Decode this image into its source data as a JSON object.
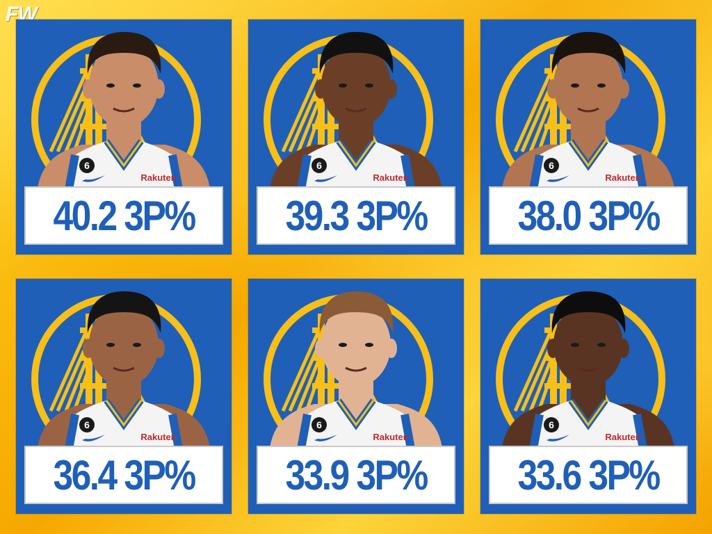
{
  "brand": {
    "logo_text": "FW"
  },
  "colors": {
    "card_blue": "#1f5fb7",
    "logo_gold": "#f7bf17",
    "background_gold": "#f7b801",
    "stat_text": "#1f5fb7",
    "jersey_white": "#f4f4f4",
    "jersey_trim": "#1f5fb7"
  },
  "cards": [
    {
      "stat": "40.2 3P%",
      "jersey_number": "6",
      "sponsor": "Rakuten",
      "skin": "#c98d6a",
      "hair": "#2a1b12"
    },
    {
      "stat": "39.3 3P%",
      "jersey_number": "6",
      "sponsor": "Rakuten",
      "skin": "#6b3f27",
      "hair": "#111111"
    },
    {
      "stat": "38.0 3P%",
      "jersey_number": "6",
      "sponsor": "Rakuten",
      "skin": "#b27552",
      "hair": "#1a120c"
    },
    {
      "stat": "36.4 3P%",
      "jersey_number": "6",
      "sponsor": "Rakuten",
      "skin": "#9a6444",
      "hair": "#141414"
    },
    {
      "stat": "33.9 3P%",
      "jersey_number": "6",
      "sponsor": "Rakuten",
      "skin": "#e2b393",
      "hair": "#8a5b36"
    },
    {
      "stat": "33.6 3P%",
      "jersey_number": "6",
      "sponsor": "Rakuten",
      "skin": "#5a3422",
      "hair": "#0d0d0d"
    }
  ]
}
